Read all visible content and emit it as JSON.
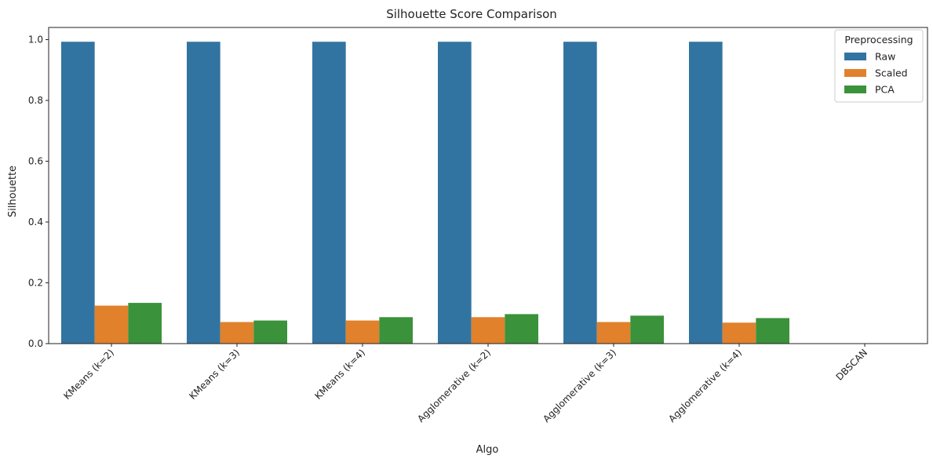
{
  "chart_data": {
    "type": "bar",
    "title": "Silhouette Score Comparison",
    "xlabel": "Algo",
    "ylabel": "Silhouette",
    "categories": [
      "KMeans (k=2)",
      "KMeans (k=3)",
      "KMeans (k=4)",
      "Agglomerative (k=2)",
      "Agglomerative (k=3)",
      "Agglomerative (k=4)",
      "DBSCAN"
    ],
    "series": [
      {
        "name": "Raw",
        "color": "#3274a1",
        "values": [
          0.993,
          0.993,
          0.993,
          0.993,
          0.993,
          0.993,
          0
        ]
      },
      {
        "name": "Scaled",
        "color": "#e1812c",
        "values": [
          0.125,
          0.071,
          0.076,
          0.087,
          0.071,
          0.069,
          0
        ]
      },
      {
        "name": "PCA",
        "color": "#3a923a",
        "values": [
          0.134,
          0.076,
          0.087,
          0.097,
          0.092,
          0.084,
          0
        ]
      }
    ],
    "ylim": [
      0,
      1.04
    ],
    "yticks": [
      "0.0",
      "0.2",
      "0.4",
      "0.6",
      "0.8",
      "1.0"
    ],
    "ytick_values": [
      0,
      0.2,
      0.4,
      0.6,
      0.8,
      1.0
    ],
    "xtick_rotation": 45,
    "grid": false,
    "legend": {
      "title": "Preprocessing",
      "placement": "top-right"
    }
  }
}
